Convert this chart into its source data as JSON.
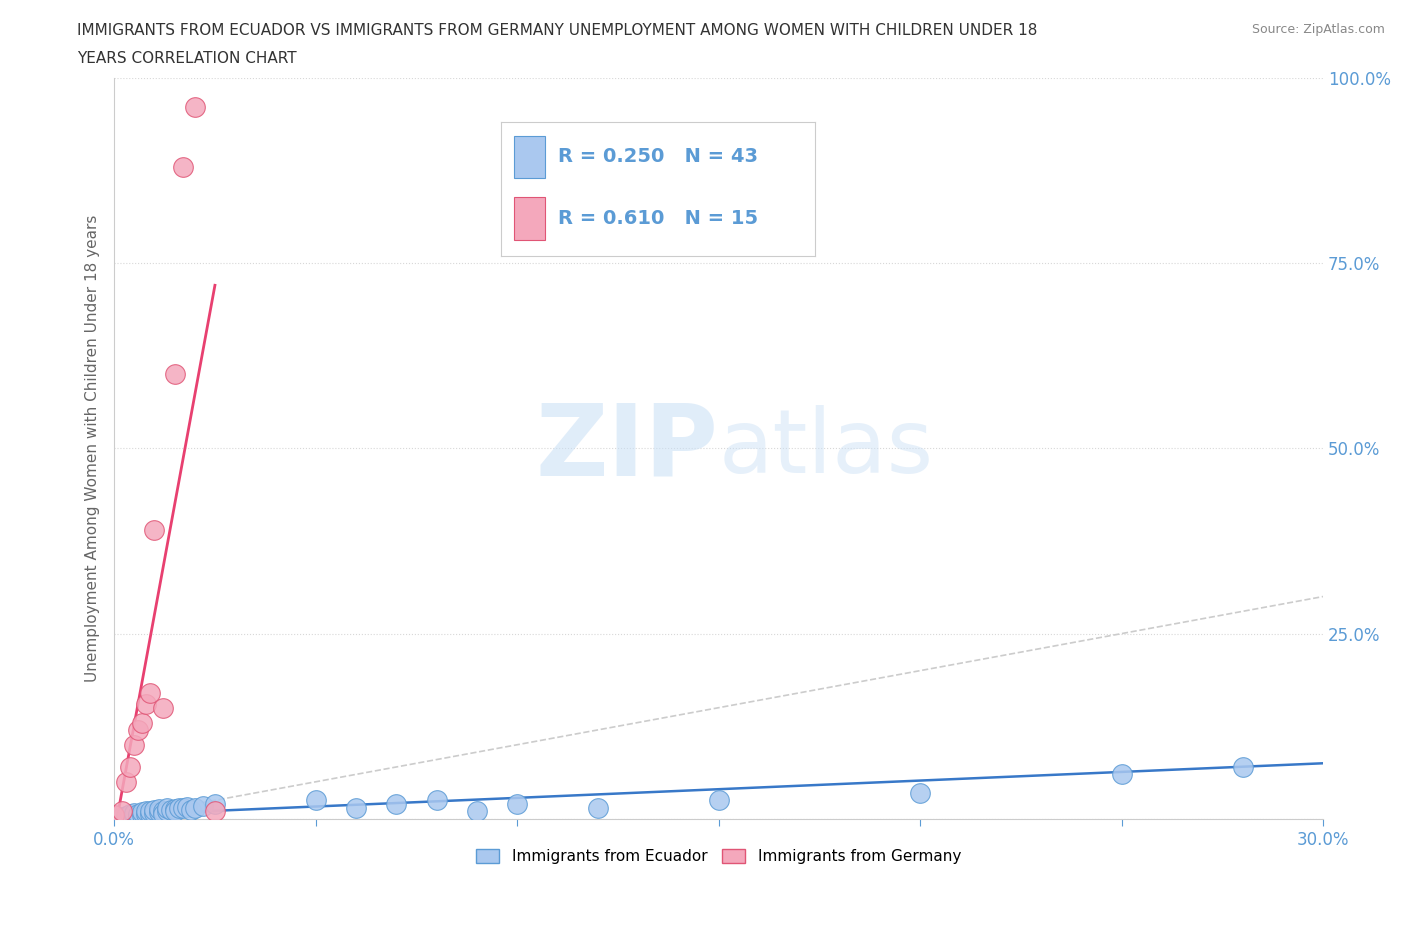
{
  "title_line1": "IMMIGRANTS FROM ECUADOR VS IMMIGRANTS FROM GERMANY UNEMPLOYMENT AMONG WOMEN WITH CHILDREN UNDER 18",
  "title_line2": "YEARS CORRELATION CHART",
  "source": "Source: ZipAtlas.com",
  "ylabel": "Unemployment Among Women with Children Under 18 years",
  "xlim": [
    0.0,
    0.3
  ],
  "ylim": [
    0.0,
    1.0
  ],
  "ecuador_R": 0.25,
  "ecuador_N": 43,
  "germany_R": 0.61,
  "germany_N": 15,
  "ecuador_color": "#aac8ef",
  "germany_color": "#f4a8bc",
  "ecuador_edge_color": "#5b9bd5",
  "germany_edge_color": "#e05575",
  "ecuador_line_color": "#3878c8",
  "germany_line_color": "#e84070",
  "ref_line_color": "#cccccc",
  "watermark_zip": "ZIP",
  "watermark_atlas": "atlas",
  "background_color": "#ffffff",
  "grid_color": "#d8d8d8",
  "tick_color": "#5b9bd5",
  "ylabel_color": "#666666",
  "ecuador_scatter_x": [
    0.0,
    0.002,
    0.003,
    0.004,
    0.005,
    0.005,
    0.006,
    0.006,
    0.007,
    0.007,
    0.008,
    0.008,
    0.009,
    0.009,
    0.01,
    0.01,
    0.011,
    0.011,
    0.012,
    0.012,
    0.013,
    0.013,
    0.014,
    0.015,
    0.015,
    0.016,
    0.017,
    0.018,
    0.019,
    0.02,
    0.022,
    0.025,
    0.05,
    0.06,
    0.07,
    0.08,
    0.09,
    0.1,
    0.12,
    0.15,
    0.2,
    0.25,
    0.28
  ],
  "ecuador_scatter_y": [
    0.005,
    0.003,
    0.004,
    0.006,
    0.005,
    0.008,
    0.004,
    0.007,
    0.005,
    0.009,
    0.006,
    0.01,
    0.007,
    0.011,
    0.008,
    0.012,
    0.009,
    0.013,
    0.01,
    0.007,
    0.011,
    0.014,
    0.012,
    0.013,
    0.01,
    0.015,
    0.014,
    0.016,
    0.012,
    0.015,
    0.018,
    0.02,
    0.025,
    0.015,
    0.02,
    0.025,
    0.01,
    0.02,
    0.015,
    0.025,
    0.035,
    0.06,
    0.07
  ],
  "germany_scatter_x": [
    0.0,
    0.002,
    0.003,
    0.004,
    0.005,
    0.006,
    0.007,
    0.008,
    0.009,
    0.01,
    0.012,
    0.015,
    0.017,
    0.02,
    0.025
  ],
  "germany_scatter_y": [
    0.005,
    0.01,
    0.05,
    0.07,
    0.1,
    0.12,
    0.13,
    0.155,
    0.17,
    0.39,
    0.15,
    0.6,
    0.88,
    0.96,
    0.01
  ],
  "ecuador_line_x": [
    0.0,
    0.3
  ],
  "ecuador_line_y": [
    0.005,
    0.075
  ],
  "germany_line_x": [
    0.0,
    0.025
  ],
  "germany_line_y": [
    -0.02,
    0.72
  ]
}
